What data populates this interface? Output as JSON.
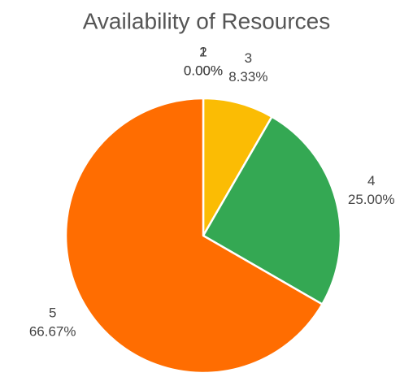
{
  "chart_data": {
    "type": "pie",
    "title": "Availability of Resources",
    "categories": [
      "1",
      "2",
      "3",
      "4",
      "5"
    ],
    "values": [
      0,
      0,
      8.33,
      25,
      66.67
    ],
    "value_labels": [
      "0.00%",
      "0.00%",
      "8.33%",
      "25.00%",
      "66.67%"
    ],
    "colors": [
      "#4285f4",
      "#ea4335",
      "#fbbc04",
      "#34a853",
      "#ff6d01"
    ]
  }
}
